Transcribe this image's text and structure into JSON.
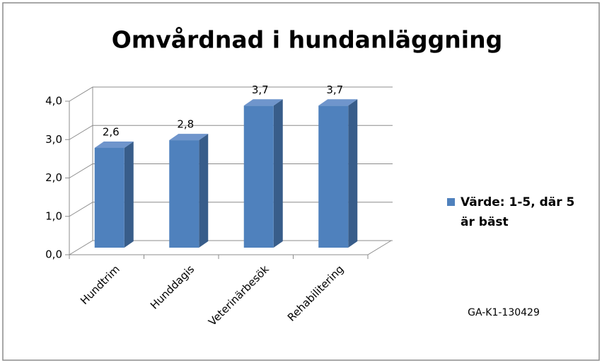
{
  "chart_data": {
    "type": "bar",
    "title": "Omvårdnad i hundanläggning",
    "categories": [
      "Hundtrim",
      "Hunddagis",
      "Veterinärbesök",
      "Rehabilitering"
    ],
    "series": [
      {
        "name": "Värde: 1-5, där 5 är bäst",
        "color": "#4f81bd",
        "values": [
          2.6,
          2.8,
          3.7,
          3.7
        ],
        "value_labels": [
          "2,6",
          "2,8",
          "3,7",
          "3,7"
        ]
      }
    ],
    "ylim": [
      0,
      4
    ],
    "yticks": [
      {
        "value": 0,
        "label": "0,0"
      },
      {
        "value": 1,
        "label": "1,0"
      },
      {
        "value": 2,
        "label": "2,0"
      },
      {
        "value": 3,
        "label": "3,0"
      },
      {
        "value": 4,
        "label": "4,0"
      }
    ],
    "grid": true,
    "legend": "right",
    "annotations": [
      "GA-K1-130429"
    ]
  }
}
